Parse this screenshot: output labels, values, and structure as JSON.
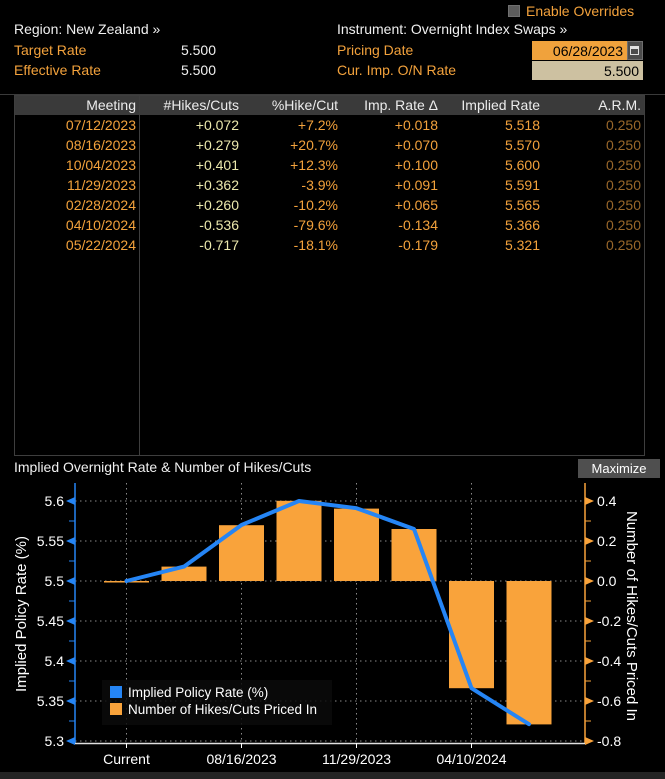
{
  "colors": {
    "accent_orange": "#f3a23c",
    "line_blue": "#2585f5",
    "bar_orange": "#f9a33b",
    "pale_yellow": "#ece9ad",
    "dim_orange": "#99672a",
    "field_amber": "#f0a23c",
    "field_tan": "#cdc1a1"
  },
  "header": {
    "enable_overrides": "Enable Overrides",
    "region": "Region: New Zealand »",
    "instrument": "Instrument: Overnight Index Swaps »",
    "target_rate_label": "Target Rate",
    "target_rate_value": "5.500",
    "effective_rate_label": "Effective Rate",
    "effective_rate_value": "5.500",
    "pricing_date_label": "Pricing Date",
    "pricing_date_value": "06/28/2023",
    "cur_imp_label": "Cur. Imp. O/N Rate",
    "cur_imp_value": "5.500",
    "calendar_icon": "calendar-icon",
    "checkbox_icon": "checkbox-icon"
  },
  "table": {
    "columns": [
      "Meeting",
      "#Hikes/Cuts",
      "%Hike/Cut",
      "Imp. Rate Δ",
      "Implied Rate",
      "A.R.M."
    ],
    "rows": [
      [
        "07/12/2023",
        "+0.072",
        "+7.2%",
        "+0.018",
        "5.518",
        "0.250"
      ],
      [
        "08/16/2023",
        "+0.279",
        "+20.7%",
        "+0.070",
        "5.570",
        "0.250"
      ],
      [
        "10/04/2023",
        "+0.401",
        "+12.3%",
        "+0.100",
        "5.600",
        "0.250"
      ],
      [
        "11/29/2023",
        "+0.362",
        "-3.9%",
        "+0.091",
        "5.591",
        "0.250"
      ],
      [
        "02/28/2024",
        "+0.260",
        "-10.2%",
        "+0.065",
        "5.565",
        "0.250"
      ],
      [
        "04/10/2024",
        "-0.536",
        "-79.6%",
        "-0.134",
        "5.366",
        "0.250"
      ],
      [
        "05/22/2024",
        "-0.717",
        "-18.1%",
        "-0.179",
        "5.321",
        "0.250"
      ]
    ]
  },
  "chart": {
    "title": "Implied Overnight Rate & Number of Hikes/Cuts",
    "maximize_label": "Maximize"
  },
  "chart_data": {
    "type": "line+bar",
    "title": "Implied Overnight Rate & Number of Hikes/Cuts",
    "x_categories": [
      "Current",
      "07/12/2023",
      "08/16/2023",
      "10/04/2023",
      "11/29/2023",
      "02/28/2024",
      "04/10/2024",
      "05/22/2024"
    ],
    "x_axis": {
      "tick_indices": [
        0,
        2,
        4,
        6
      ],
      "tick_labels": [
        "Current",
        "08/16/2023",
        "11/29/2023",
        "04/10/2024"
      ]
    },
    "series": [
      {
        "name": "Implied Policy Rate (%)",
        "type": "line",
        "axis": "left",
        "color": "#2585f5",
        "values": [
          5.5,
          5.518,
          5.57,
          5.6,
          5.591,
          5.565,
          5.366,
          5.321
        ]
      },
      {
        "name": "Number of Hikes/Cuts Priced In",
        "type": "bar",
        "axis": "right",
        "color": "#f9a33b",
        "values": [
          0.0,
          0.072,
          0.279,
          0.401,
          0.362,
          0.26,
          -0.536,
          -0.717
        ]
      }
    ],
    "left_axis": {
      "label": "Implied Policy Rate (%)",
      "min": 5.3,
      "max": 5.6,
      "color": "#2585f5",
      "tick_values": [
        5.6,
        5.55,
        5.5,
        5.45,
        5.4,
        5.35,
        5.3
      ],
      "tick_labels": [
        "5.6",
        "5.55",
        "5.5",
        "5.45",
        "5.4",
        "5.35",
        "5.3"
      ]
    },
    "right_axis": {
      "label": "Number of Hikes/Cuts Priced In",
      "min": -0.8,
      "max": 0.4,
      "color": "#f9a33b",
      "tick_values": [
        0.4,
        0.2,
        0.0,
        -0.2,
        -0.4,
        -0.6,
        -0.8
      ],
      "tick_labels": [
        "0.4",
        "0.2",
        "0.0",
        "-0.2",
        "-0.4",
        "-0.6",
        "-0.8"
      ]
    },
    "legend": {
      "position": "bottom-left-inside",
      "entries": [
        "Implied Policy Rate (%)",
        "Number of Hikes/Cuts Priced In"
      ]
    },
    "grid": "dashed"
  }
}
